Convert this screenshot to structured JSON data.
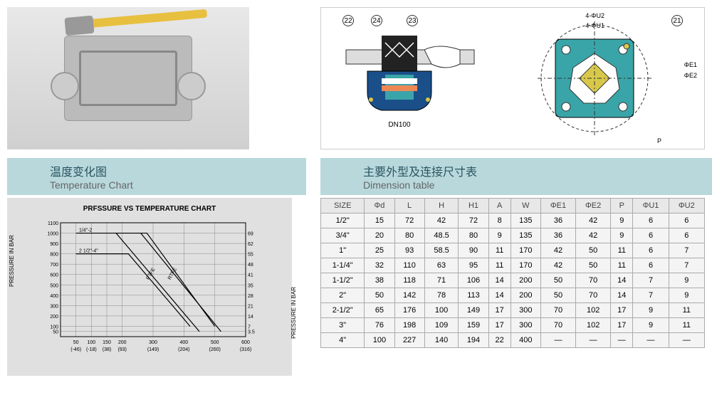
{
  "diagrams": {
    "callouts_left": [
      "22",
      "24",
      "23"
    ],
    "dn_label": "DN100",
    "callouts_right": [
      "21"
    ],
    "right_labels": [
      "4-ΦU2",
      "4-ΦU1",
      "ΦE1",
      "ΦE2",
      "P"
    ],
    "colors": {
      "valve_body": "#1a4f8a",
      "valve_cap": "#222222",
      "flange": "#3aa5a8",
      "bolt": "#d8c84a"
    }
  },
  "temp_chart": {
    "title_cn": "温度变化图",
    "title_en": "Temperature Chart",
    "chart_title": "PRFSSURE VS TEMPERATURE CHART",
    "y_label": "PRESSURE IN BAR",
    "yticks": [
      50,
      100,
      200,
      300,
      400,
      500,
      600,
      700,
      800,
      900,
      1000,
      1100
    ],
    "yticks_right": [
      3.5,
      7,
      14,
      21,
      28,
      35,
      41,
      48,
      55,
      62,
      69
    ],
    "xticks_top": [
      50,
      100,
      150,
      200,
      300,
      400,
      500,
      600
    ],
    "xticks_bottom": [
      "(-46)",
      "(-18)",
      "(38)",
      "(93)",
      "(149)",
      "(204)",
      "(260)",
      "(316)"
    ],
    "line_labels": [
      "1/4\"-2",
      "2 1/2\"-4\"",
      "PTFE",
      "RTFE"
    ],
    "lines": [
      {
        "label": "1/4\"-2",
        "points": [
          [
            50,
            1000
          ],
          [
            280,
            1000
          ],
          [
            500,
            100
          ]
        ],
        "color": "#000"
      },
      {
        "label": "2 1/2\"-4\"",
        "points": [
          [
            50,
            800
          ],
          [
            220,
            800
          ],
          [
            420,
            100
          ]
        ],
        "color": "#000"
      },
      {
        "label": "PTFE",
        "points": [
          [
            180,
            1000
          ],
          [
            450,
            50
          ]
        ],
        "color": "#000"
      },
      {
        "label": "RTFE",
        "points": [
          [
            260,
            1000
          ],
          [
            520,
            50
          ]
        ],
        "color": "#000"
      }
    ],
    "xlim": [
      0,
      600
    ],
    "ylim": [
      0,
      1100
    ],
    "grid_color": "#888",
    "background_color": "#e0e0e0"
  },
  "dimension_table": {
    "title_cn": "主要外型及连接尺寸表",
    "title_en": "Dimension table",
    "columns": [
      "SIZE",
      "Φd",
      "L",
      "H",
      "H1",
      "A",
      "W",
      "ΦE1",
      "ΦE2",
      "P",
      "ΦU1",
      "ΦU2"
    ],
    "rows": [
      [
        "1/2\"",
        "15",
        "72",
        "42",
        "72",
        "8",
        "135",
        "36",
        "42",
        "9",
        "6",
        "6"
      ],
      [
        "3/4\"",
        "20",
        "80",
        "48.5",
        "80",
        "9",
        "135",
        "36",
        "42",
        "9",
        "6",
        "6"
      ],
      [
        "1\"",
        "25",
        "93",
        "58.5",
        "90",
        "11",
        "170",
        "42",
        "50",
        "11",
        "6",
        "7"
      ],
      [
        "1-1/4\"",
        "32",
        "110",
        "63",
        "95",
        "11",
        "170",
        "42",
        "50",
        "11",
        "6",
        "7"
      ],
      [
        "1-1/2\"",
        "38",
        "118",
        "71",
        "106",
        "14",
        "200",
        "50",
        "70",
        "14",
        "7",
        "9"
      ],
      [
        "2\"",
        "50",
        "142",
        "78",
        "113",
        "14",
        "200",
        "50",
        "70",
        "14",
        "7",
        "9"
      ],
      [
        "2-1/2\"",
        "65",
        "176",
        "100",
        "149",
        "17",
        "300",
        "70",
        "102",
        "17",
        "9",
        "11"
      ],
      [
        "3\"",
        "76",
        "198",
        "109",
        "159",
        "17",
        "300",
        "70",
        "102",
        "17",
        "9",
        "11"
      ],
      [
        "4\"",
        "100",
        "227",
        "140",
        "194",
        "22",
        "400",
        "—",
        "—",
        "—",
        "—",
        "—"
      ]
    ]
  }
}
